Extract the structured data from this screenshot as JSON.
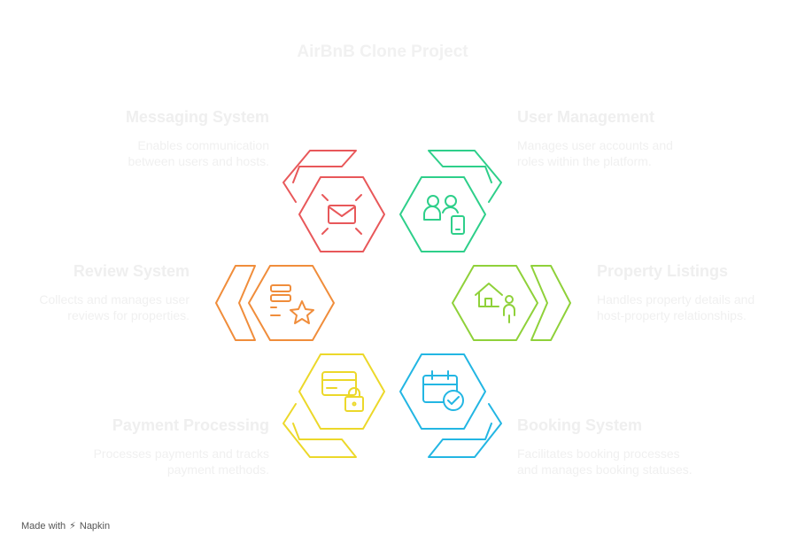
{
  "title": "AirBnB Clone Project",
  "colors": {
    "messaging": "#e8585a",
    "user": "#2ecf8a",
    "review": "#f08d3b",
    "property": "#8fd13a",
    "payment": "#ecd82a",
    "booking": "#23b6e3"
  },
  "items": {
    "messaging": {
      "head": "Messaging System",
      "desc": "Enables communication between users and hosts.",
      "icon": "envelope-icon"
    },
    "user": {
      "head": "User Management",
      "desc": "Manages user accounts and roles within the platform.",
      "icon": "users-phone-icon"
    },
    "review": {
      "head": "Review System",
      "desc": "Collects and manages user reviews for properties.",
      "icon": "review-list-star-icon"
    },
    "property": {
      "head": "Property Listings",
      "desc": "Handles property details and host-property relationships.",
      "icon": "house-person-icon"
    },
    "payment": {
      "head": "Payment Processing",
      "desc": "Processes payments and tracks payment methods.",
      "icon": "credit-card-lock-icon"
    },
    "booking": {
      "head": "Booking System",
      "desc": "Facilitates booking processes and manages booking statuses.",
      "icon": "calendar-check-icon"
    }
  },
  "brand": {
    "prefix": "Made with",
    "name": "Napkin"
  }
}
